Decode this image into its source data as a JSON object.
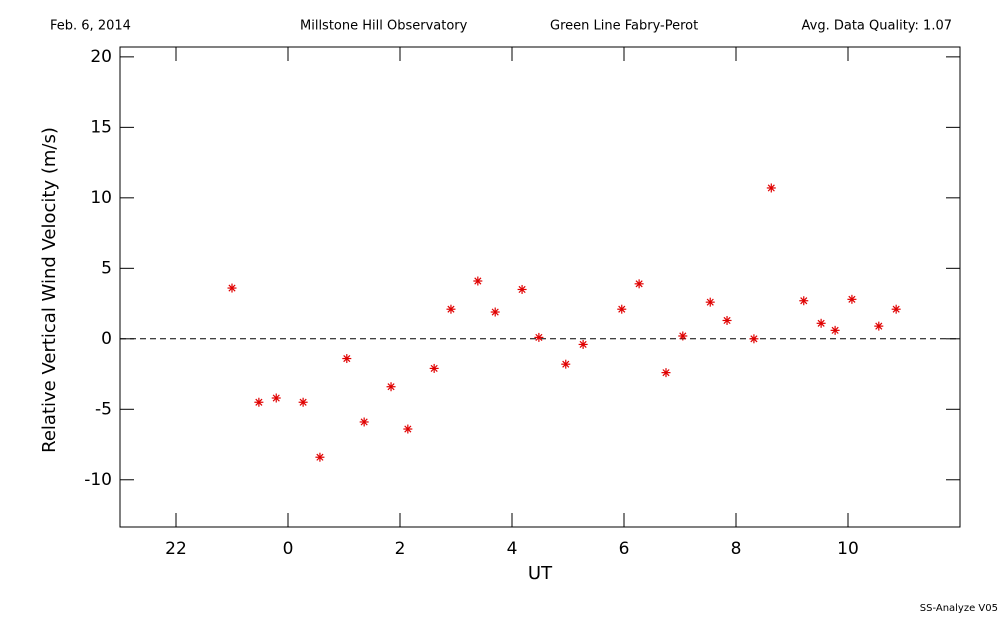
{
  "header": {
    "date": "Feb. 6, 2014",
    "site": "Millstone Hill Observatory",
    "instrument": "Green Line Fabry-Perot",
    "quality": "Avg. Data Quality: 1.07"
  },
  "footer": "SS-Analyze V05",
  "chart_data": {
    "type": "scatter",
    "x_label": "UT",
    "y_label": "Relative Vertical Wind Velocity (m/s)",
    "xlim": [
      -3,
      12
    ],
    "ylim": [
      -13.35,
      20.7
    ],
    "xticks": [
      {
        "value": -2,
        "label": "22"
      },
      0,
      2,
      4,
      6,
      8,
      10
    ],
    "yticks": [
      -10,
      -5,
      0,
      5,
      10,
      15,
      20
    ],
    "reference_line": 0,
    "color": "#e00000",
    "marker": "asterisk",
    "x": [
      -1.0,
      -0.52,
      -0.21,
      0.27,
      0.57,
      1.05,
      1.36,
      1.84,
      2.14,
      2.61,
      2.91,
      3.39,
      3.7,
      4.18,
      4.48,
      4.96,
      5.27,
      5.96,
      6.27,
      6.75,
      7.05,
      7.54,
      7.84,
      8.32,
      8.63,
      9.21,
      9.52,
      9.77,
      10.07,
      10.55,
      10.86
    ],
    "values": [
      3.6,
      -4.5,
      -4.2,
      -4.5,
      -8.4,
      -1.4,
      -5.9,
      -3.4,
      -6.4,
      -2.1,
      2.1,
      4.1,
      1.9,
      3.5,
      0.1,
      -1.8,
      -0.4,
      2.1,
      3.9,
      -2.4,
      0.2,
      2.6,
      1.3,
      0.0,
      10.7,
      2.7,
      1.1,
      0.6,
      2.8,
      0.9,
      2.1
    ]
  }
}
